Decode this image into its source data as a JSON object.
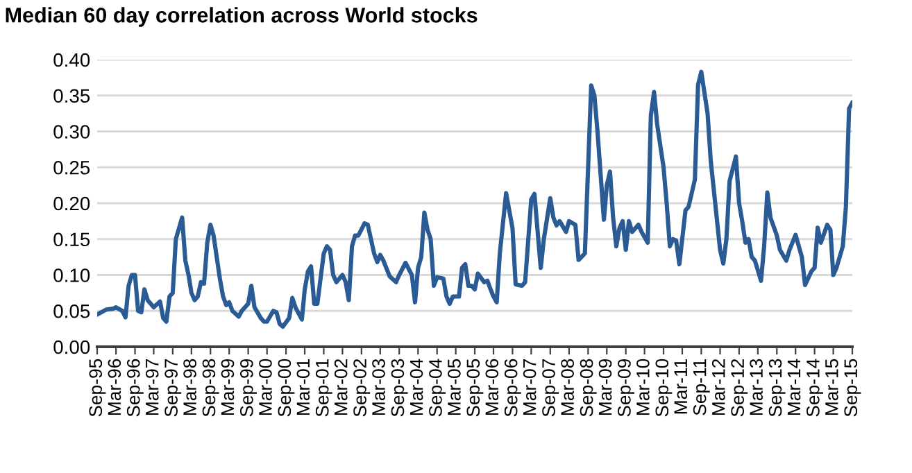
{
  "chart_data": {
    "type": "line",
    "title": "Median 60 day correlation across World stocks",
    "x": [
      "1995-09",
      "1995-12",
      "1996-02",
      "1996-03",
      "1996-05",
      "1996-06",
      "1996-07",
      "1996-08",
      "1996-09",
      "1996-10",
      "1996-11",
      "1996-12",
      "1997-01",
      "1997-03",
      "1997-05",
      "1997-06",
      "1997-07",
      "1997-08",
      "1997-09",
      "1997-10",
      "1997-11",
      "1997-12",
      "1998-01",
      "1998-02",
      "1998-03",
      "1998-04",
      "1998-05",
      "1998-06",
      "1998-07",
      "1998-08",
      "1998-09",
      "1998-10",
      "1998-12",
      "1999-01",
      "1999-02",
      "1999-03",
      "1999-04",
      "1999-06",
      "1999-07",
      "1999-09",
      "1999-10",
      "1999-11",
      "2000-01",
      "2000-02",
      "2000-03",
      "2000-05",
      "2000-06",
      "2000-07",
      "2000-08",
      "2000-10",
      "2000-11",
      "2000-12",
      "2001-02",
      "2001-03",
      "2001-04",
      "2001-05",
      "2001-06",
      "2001-07",
      "2001-09",
      "2001-10",
      "2001-11",
      "2001-12",
      "2002-01",
      "2002-03",
      "2002-04",
      "2002-05",
      "2002-06",
      "2002-07",
      "2002-08",
      "2002-10",
      "2002-11",
      "2003-01",
      "2003-02",
      "2003-03",
      "2003-04",
      "2003-06",
      "2003-08",
      "2003-09",
      "2003-11",
      "2004-01",
      "2004-02",
      "2004-03",
      "2004-04",
      "2004-05",
      "2004-06",
      "2004-07",
      "2004-08",
      "2004-09",
      "2004-11",
      "2004-12",
      "2005-01",
      "2005-02",
      "2005-04",
      "2005-05",
      "2005-06",
      "2005-07",
      "2005-08",
      "2005-09",
      "2005-10",
      "2005-12",
      "2006-01",
      "2006-02",
      "2006-03",
      "2006-04",
      "2006-05",
      "2006-07",
      "2006-09",
      "2006-10",
      "2006-12",
      "2007-01",
      "2007-03",
      "2007-04",
      "2007-06",
      "2007-07",
      "2007-09",
      "2007-10",
      "2007-11",
      "2007-12",
      "2008-02",
      "2008-03",
      "2008-05",
      "2008-06",
      "2008-08",
      "2008-10",
      "2008-11",
      "2008-12",
      "2009-02",
      "2009-03",
      "2009-04",
      "2009-05",
      "2009-06",
      "2009-07",
      "2009-08",
      "2009-09",
      "2009-10",
      "2009-11",
      "2010-01",
      "2010-02",
      "2010-04",
      "2010-05",
      "2010-06",
      "2010-07",
      "2010-09",
      "2010-10",
      "2010-11",
      "2010-12",
      "2011-01",
      "2011-02",
      "2011-04",
      "2011-05",
      "2011-07",
      "2011-08",
      "2011-09",
      "2011-11",
      "2011-12",
      "2012-03",
      "2012-04",
      "2012-05",
      "2012-06",
      "2012-08",
      "2012-09",
      "2012-10",
      "2012-11",
      "2012-12",
      "2013-01",
      "2013-02",
      "2013-04",
      "2013-05",
      "2013-06",
      "2013-07",
      "2013-09",
      "2013-10",
      "2013-12",
      "2014-01",
      "2014-03",
      "2014-05",
      "2014-06",
      "2014-08",
      "2014-09",
      "2014-10",
      "2014-11",
      "2015-01",
      "2015-02",
      "2015-03",
      "2015-04",
      "2015-06",
      "2015-07",
      "2015-08",
      "2015-09"
    ],
    "series": [
      {
        "color": "#2b5b95",
        "values": [
          0.045,
          0.052,
          0.053,
          0.055,
          0.05,
          0.041,
          0.085,
          0.1,
          0.1,
          0.05,
          0.048,
          0.08,
          0.065,
          0.055,
          0.063,
          0.04,
          0.035,
          0.07,
          0.075,
          0.15,
          0.165,
          0.18,
          0.12,
          0.1,
          0.075,
          0.065,
          0.07,
          0.09,
          0.088,
          0.145,
          0.17,
          0.155,
          0.095,
          0.07,
          0.058,
          0.062,
          0.05,
          0.042,
          0.05,
          0.06,
          0.085,
          0.055,
          0.04,
          0.035,
          0.035,
          0.05,
          0.048,
          0.032,
          0.028,
          0.04,
          0.068,
          0.055,
          0.038,
          0.08,
          0.105,
          0.112,
          0.06,
          0.06,
          0.13,
          0.14,
          0.135,
          0.1,
          0.09,
          0.1,
          0.09,
          0.065,
          0.14,
          0.155,
          0.155,
          0.172,
          0.17,
          0.13,
          0.118,
          0.128,
          0.12,
          0.098,
          0.09,
          0.1,
          0.117,
          0.1,
          0.062,
          0.11,
          0.125,
          0.187,
          0.163,
          0.15,
          0.085,
          0.097,
          0.095,
          0.07,
          0.06,
          0.07,
          0.07,
          0.11,
          0.115,
          0.085,
          0.085,
          0.08,
          0.102,
          0.09,
          0.092,
          0.08,
          0.07,
          0.062,
          0.13,
          0.214,
          0.165,
          0.087,
          0.085,
          0.09,
          0.205,
          0.213,
          0.11,
          0.15,
          0.207,
          0.18,
          0.169,
          0.175,
          0.16,
          0.175,
          0.17,
          0.121,
          0.13,
          0.364,
          0.35,
          0.3,
          0.177,
          0.225,
          0.244,
          0.18,
          0.14,
          0.165,
          0.175,
          0.135,
          0.175,
          0.16,
          0.17,
          0.16,
          0.145,
          0.322,
          0.355,
          0.31,
          0.25,
          0.2,
          0.14,
          0.15,
          0.148,
          0.115,
          0.19,
          0.195,
          0.233,
          0.365,
          0.383,
          0.325,
          0.26,
          0.135,
          0.116,
          0.15,
          0.231,
          0.265,
          0.2,
          0.175,
          0.145,
          0.15,
          0.125,
          0.12,
          0.092,
          0.14,
          0.215,
          0.18,
          0.155,
          0.135,
          0.12,
          0.135,
          0.156,
          0.125,
          0.086,
          0.105,
          0.11,
          0.166,
          0.145,
          0.17,
          0.163,
          0.1,
          0.11,
          0.14,
          0.195,
          0.332,
          0.34
        ]
      }
    ],
    "xlim": [
      "1995-09",
      "2015-09"
    ],
    "xticks": [
      {
        "value": "1995-09",
        "label": "Sep-95"
      },
      {
        "value": "1996-03",
        "label": "Mar-96"
      },
      {
        "value": "1996-09",
        "label": "Sep-96"
      },
      {
        "value": "1997-03",
        "label": "Mar-97"
      },
      {
        "value": "1997-09",
        "label": "Sep-97"
      },
      {
        "value": "1998-03",
        "label": "Mar-98"
      },
      {
        "value": "1998-09",
        "label": "Sep-98"
      },
      {
        "value": "1999-03",
        "label": "Mar-99"
      },
      {
        "value": "1999-09",
        "label": "Sep-99"
      },
      {
        "value": "2000-03",
        "label": "Mar-00"
      },
      {
        "value": "2000-09",
        "label": "Sep-00"
      },
      {
        "value": "2001-03",
        "label": "Mar-01"
      },
      {
        "value": "2001-09",
        "label": "Sep-01"
      },
      {
        "value": "2002-03",
        "label": "Mar-02"
      },
      {
        "value": "2002-09",
        "label": "Sep-02"
      },
      {
        "value": "2003-03",
        "label": "Mar-03"
      },
      {
        "value": "2003-09",
        "label": "Sep-03"
      },
      {
        "value": "2004-03",
        "label": "Mar-04"
      },
      {
        "value": "2004-09",
        "label": "Sep-04"
      },
      {
        "value": "2005-03",
        "label": "Mar-05"
      },
      {
        "value": "2005-09",
        "label": "Sep-05"
      },
      {
        "value": "2006-03",
        "label": "Mar-06"
      },
      {
        "value": "2006-09",
        "label": "Sep-06"
      },
      {
        "value": "2007-03",
        "label": "Mar-07"
      },
      {
        "value": "2007-09",
        "label": "Sep-07"
      },
      {
        "value": "2008-03",
        "label": "Mar-08"
      },
      {
        "value": "2008-09",
        "label": "Sep-08"
      },
      {
        "value": "2009-03",
        "label": "Mar-09"
      },
      {
        "value": "2009-09",
        "label": "Sep-09"
      },
      {
        "value": "2010-03",
        "label": "Mar-10"
      },
      {
        "value": "2010-09",
        "label": "Sep-10"
      },
      {
        "value": "2011-03",
        "label": "Mar-11"
      },
      {
        "value": "2011-09",
        "label": "Sep-11"
      },
      {
        "value": "2012-03",
        "label": "Mar-12"
      },
      {
        "value": "2012-09",
        "label": "Sep-12"
      },
      {
        "value": "2013-03",
        "label": "Mar-13"
      },
      {
        "value": "2013-09",
        "label": "Sep-13"
      },
      {
        "value": "2014-03",
        "label": "Mar-14"
      },
      {
        "value": "2014-09",
        "label": "Sep-14"
      },
      {
        "value": "2015-03",
        "label": "Mar-15"
      },
      {
        "value": "2015-09",
        "label": "Sep-15"
      }
    ],
    "ylim": [
      0,
      0.4
    ],
    "yticks": [
      {
        "value": 0,
        "label": "0.00"
      },
      {
        "value": 0.05,
        "label": "0.05"
      },
      {
        "value": 0.1,
        "label": "0.10"
      },
      {
        "value": 0.15,
        "label": "0.15"
      },
      {
        "value": 0.2,
        "label": "0.20"
      },
      {
        "value": 0.25,
        "label": "0.25"
      },
      {
        "value": 0.3,
        "label": "0.30"
      },
      {
        "value": 0.35,
        "label": "0.35"
      },
      {
        "value": 0.4,
        "label": "0.40"
      }
    ],
    "grid": "y",
    "marker": "none",
    "line_style": "solid"
  }
}
